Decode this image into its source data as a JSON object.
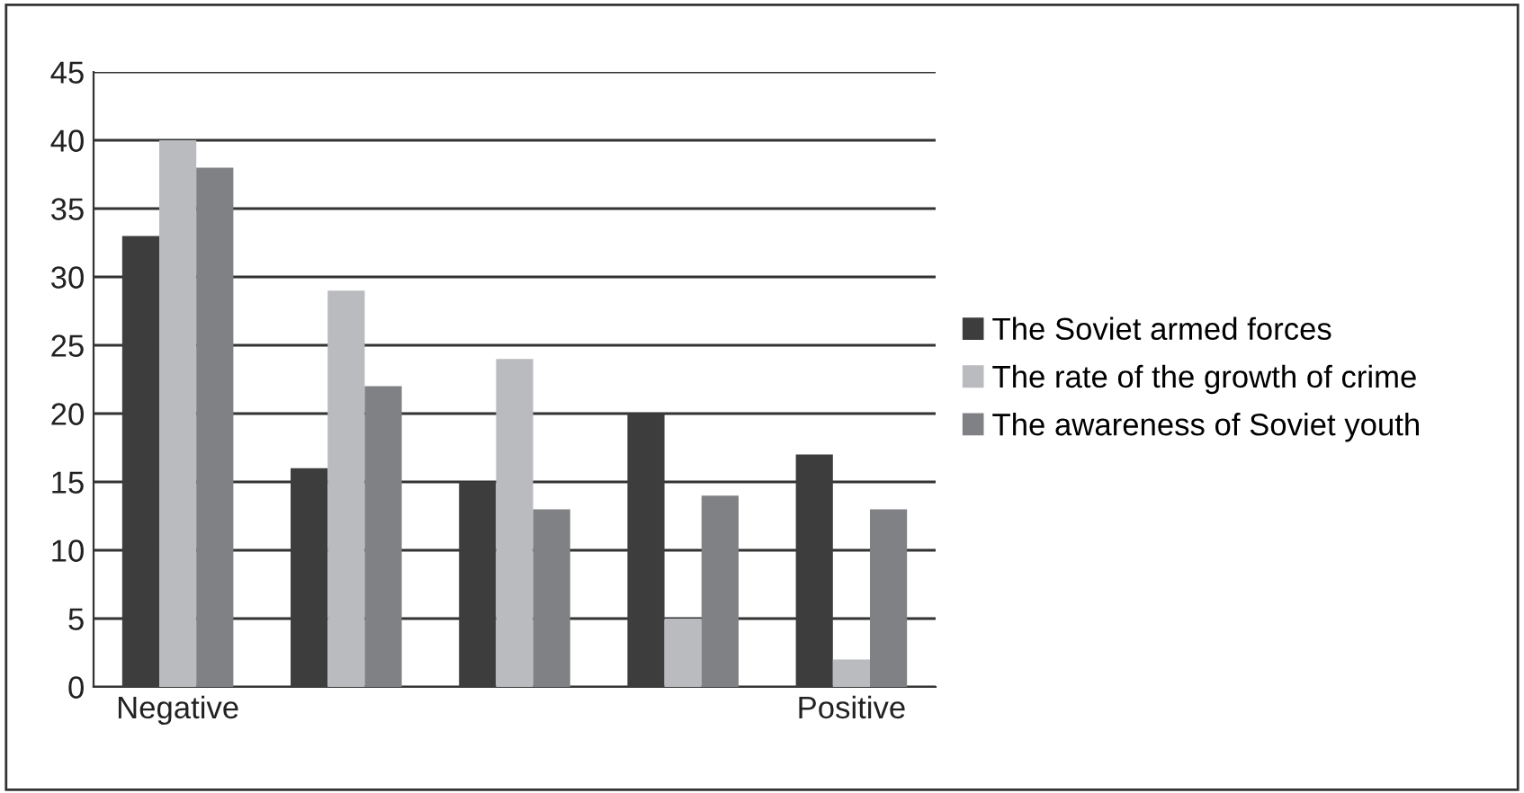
{
  "chart_data": {
    "type": "bar",
    "categories": [
      "Negative",
      null,
      null,
      null,
      "Positive"
    ],
    "series": [
      {
        "name": "The Soviet armed forces",
        "color": "#3d3d3d",
        "values": [
          33,
          16,
          15,
          20,
          17
        ]
      },
      {
        "name": "The rate of the growth of crime",
        "color": "#babbbe",
        "values": [
          40,
          29,
          24,
          5,
          2
        ]
      },
      {
        "name": "The awareness of Soviet youth",
        "color": "#808184",
        "values": [
          38,
          22,
          13,
          14,
          13
        ]
      }
    ],
    "ylim": [
      0,
      45
    ],
    "yticks": [
      0,
      5,
      10,
      15,
      20,
      25,
      30,
      35,
      40,
      45
    ],
    "grid": "y",
    "legend": "right"
  }
}
